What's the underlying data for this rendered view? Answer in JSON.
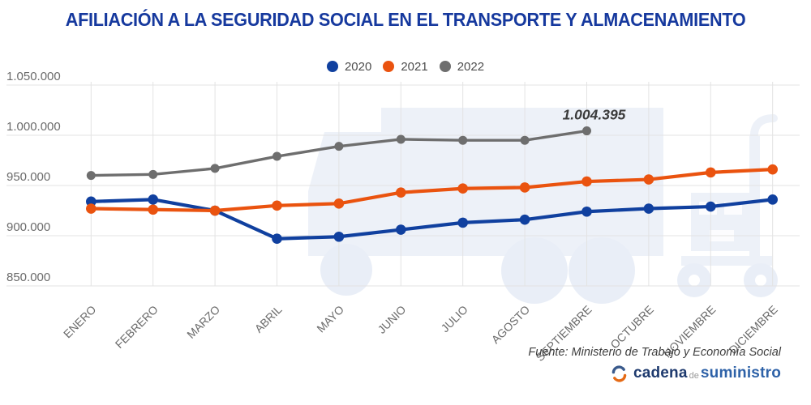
{
  "header": {
    "title": "AFILIACIÓN A LA SEGURIDAD SOCIAL EN EL TRANSPORTE Y ALMACENAMIENTO"
  },
  "chart_data": {
    "type": "line",
    "categories": [
      "ENERO",
      "FEBRERO",
      "MARZO",
      "ABRIL",
      "MAYO",
      "JUNIO",
      "JULIO",
      "AGOSTO",
      "SEPTIEMBRE",
      "OCTUBRE",
      "NOVIEMBRE",
      "DICIEMBRE"
    ],
    "series": [
      {
        "name": "2020",
        "color": "#10409f",
        "values": [
          934000,
          936000,
          925000,
          897000,
          899000,
          906000,
          913000,
          916000,
          924000,
          927000,
          929000,
          936000
        ]
      },
      {
        "name": "2021",
        "color": "#ea530f",
        "values": [
          927000,
          926000,
          925000,
          930000,
          932000,
          943000,
          947000,
          948000,
          954000,
          956000,
          963000,
          966000
        ]
      },
      {
        "name": "2022",
        "color": "#6e6e6e",
        "values": [
          960000,
          961000,
          967000,
          979000,
          989000,
          996000,
          995000,
          995000,
          1004395,
          null,
          null,
          null
        ]
      }
    ],
    "title": "AFILIACIÓN A LA SEGURIDAD SOCIAL EN EL TRANSPORTE Y ALMACENAMIENTO",
    "xlabel": "",
    "ylabel": "",
    "ylim": [
      850000,
      1050000
    ],
    "yticks": [
      {
        "value": 1050000,
        "label": "1.050.000"
      },
      {
        "value": 1000000,
        "label": "1.000.000"
      },
      {
        "value": 950000,
        "label": "950.000"
      },
      {
        "value": 900000,
        "label": "900.000"
      },
      {
        "value": 850000,
        "label": "850.000"
      }
    ],
    "grid": true,
    "legend_position": "top",
    "annotation": {
      "text": "1.004.395",
      "series_index": 2,
      "point_index": 8
    }
  },
  "footer": {
    "source": "Fuente: Ministerio de Trabajo y Economía Social",
    "logo": {
      "brand_1": "cadena",
      "brand_2": "de",
      "brand_3": "suministro"
    }
  },
  "colors": {
    "title": "#16399e",
    "grid": "#e3e3e3",
    "axis_text": "#6b6b6b",
    "annotation_text": "#3b3b3b",
    "watermark": "#edf1f8"
  }
}
